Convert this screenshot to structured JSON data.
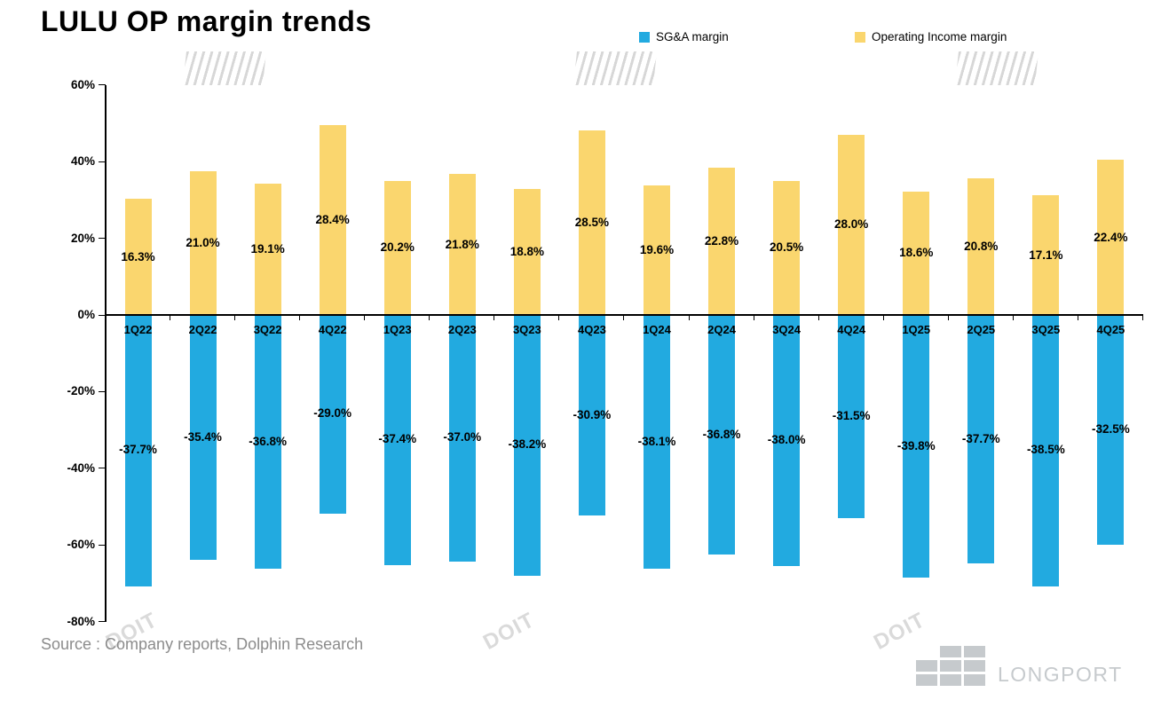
{
  "title": "LULU OP margin trends",
  "legend": [
    {
      "label": "SG&A margin",
      "color": "#22AAE0"
    },
    {
      "label": "Operating Income margin",
      "color": "#FAD66E"
    }
  ],
  "source": "Source : Company reports, Dolphin Research",
  "brand": "LONGPORT",
  "watermark": "DOIT",
  "chart_data": {
    "type": "bar",
    "title": "LULU OP margin trends",
    "categories": [
      "1Q22",
      "2Q22",
      "3Q22",
      "4Q22",
      "1Q23",
      "2Q23",
      "3Q23",
      "4Q23",
      "1Q24",
      "2Q24",
      "3Q24",
      "4Q24",
      "1Q25",
      "2Q25",
      "3Q25",
      "4Q25"
    ],
    "series": [
      {
        "name": "SG&A margin",
        "color": "#22AAE0",
        "values": [
          -37.7,
          -35.4,
          -36.8,
          -29.0,
          -37.4,
          -37.0,
          -38.2,
          -30.9,
          -38.1,
          -36.8,
          -38.0,
          -31.5,
          -39.8,
          -37.7,
          -38.5,
          -32.5
        ],
        "bar_extent_pct": [
          -70.6,
          -63.7,
          -66.0,
          -51.6,
          -65.0,
          -64.1,
          -67.8,
          -52.1,
          -66.0,
          -62.3,
          -65.3,
          -52.8,
          -68.3,
          -64.6,
          -70.6,
          -59.7
        ]
      },
      {
        "name": "Operating Income margin",
        "color": "#FAD66E",
        "values": [
          16.3,
          21.0,
          19.1,
          28.4,
          20.2,
          21.8,
          18.8,
          28.5,
          19.6,
          22.8,
          20.5,
          28.0,
          18.6,
          20.8,
          17.1,
          22.4
        ],
        "bar_extent_pct": [
          30.3,
          37.5,
          34.3,
          49.5,
          35.0,
          36.8,
          32.9,
          48.1,
          33.8,
          38.4,
          35.0,
          47.0,
          32.2,
          35.6,
          31.2,
          40.5
        ]
      }
    ],
    "xlabel": "",
    "ylabel": "",
    "ylim": [
      -80,
      60
    ],
    "yticks": [
      60,
      40,
      20,
      0,
      -20,
      -40,
      -60,
      -80
    ],
    "grid": false,
    "legend_position": "top"
  }
}
